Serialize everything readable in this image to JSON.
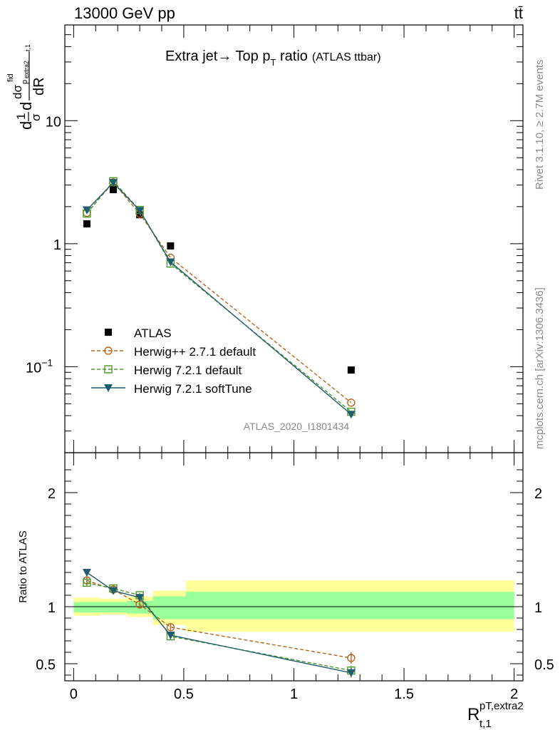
{
  "header": {
    "left": "13000 GeV pp",
    "right": "tt̄"
  },
  "side_labels": {
    "rivet": "Rivet 3.1.10, ≥ 2.7M events",
    "mcplots": "mcplots.cern.ch [arXiv:1306.3436]"
  },
  "title": {
    "main": "Extra jet→ Top p",
    "sub": "T",
    "tail": " ratio",
    "small": "(ATLAS ttbar)"
  },
  "watermark": "ATLAS_2020_I1801434",
  "ylabel_main": {
    "d": "d",
    "one": "1",
    "sigma": "σ",
    "dsig": "dσ",
    "fid": "fid",
    "sub": "p",
    "sub2": "extra2",
    "sub3": "t,1",
    "dR": "dR"
  },
  "ylabel_ratio": "Ratio to ATLAS",
  "xlabel": {
    "main": "R",
    "sup": "pT,extra2",
    "sub": "t,1"
  },
  "chart_data": [
    {
      "type": "line",
      "panel": "main",
      "yscale": "log",
      "xlim": [
        -0.04,
        2.04
      ],
      "ylim": [
        0.02,
        60
      ],
      "y_tick_labels": [
        {
          "value": 0.1,
          "base": "10",
          "exp": "−1"
        },
        {
          "value": 1,
          "base": "1",
          "exp": ""
        },
        {
          "value": 10,
          "base": "10",
          "exp": ""
        }
      ],
      "legend_position": "bottom-left",
      "series": [
        {
          "name": "ATLAS",
          "style": "data",
          "color": "#000000",
          "x": [
            0.06,
            0.18,
            0.3,
            0.44,
            1.26
          ],
          "y": [
            1.45,
            2.75,
            1.72,
            0.96,
            0.094
          ]
        },
        {
          "name": "Herwig++ 2.7.1 default",
          "style": "circle-dashed",
          "color": "#b5651d",
          "x": [
            0.06,
            0.18,
            0.3,
            0.44,
            1.26
          ],
          "y": [
            1.78,
            3.15,
            1.75,
            0.77,
            0.051
          ]
        },
        {
          "name": "Herwig 7.2.1 default",
          "style": "square-dashed",
          "color": "#4a9a2a",
          "x": [
            0.06,
            0.18,
            0.3,
            0.44,
            1.26
          ],
          "y": [
            1.76,
            3.22,
            1.88,
            0.69,
            0.043
          ]
        },
        {
          "name": "Herwig 7.2.1 softTune",
          "style": "triangle-solid",
          "color": "#1f5c6e",
          "x": [
            0.06,
            0.18,
            0.3,
            0.44,
            1.26
          ],
          "y": [
            1.88,
            3.14,
            1.86,
            0.71,
            0.041
          ]
        }
      ]
    },
    {
      "type": "line",
      "panel": "ratio",
      "xlim": [
        -0.04,
        2.04
      ],
      "ylim": [
        0.35,
        2.35
      ],
      "x_tick_labels": [
        "0",
        "0.5",
        "1",
        "1.5",
        "2"
      ],
      "x_ticks": [
        0,
        0.5,
        1,
        1.5,
        2
      ],
      "y_tick_labels": [
        "0.5",
        "1",
        "2"
      ],
      "y_ticks": [
        0.5,
        1,
        2
      ],
      "bands": [
        {
          "x0": 0.0,
          "x1": 0.12,
          "inner": [
            0.95,
            1.04
          ],
          "outer": [
            0.92,
            1.08
          ]
        },
        {
          "x0": 0.12,
          "x1": 0.24,
          "inner": [
            0.95,
            1.04
          ],
          "outer": [
            0.93,
            1.07
          ]
        },
        {
          "x0": 0.24,
          "x1": 0.36,
          "inner": [
            0.94,
            1.05
          ],
          "outer": [
            0.91,
            1.09
          ]
        },
        {
          "x0": 0.36,
          "x1": 0.51,
          "inner": [
            0.89,
            1.09
          ],
          "outer": [
            0.84,
            1.14
          ]
        },
        {
          "x0": 0.51,
          "x1": 2.0,
          "inner": [
            0.89,
            1.13
          ],
          "outer": [
            0.78,
            1.23
          ]
        }
      ],
      "series": [
        {
          "name": "Herwig++ 2.7.1 default",
          "style": "circle-dashed",
          "color": "#b5651d",
          "x": [
            0.06,
            0.18,
            0.3,
            0.44,
            1.26
          ],
          "y": [
            1.23,
            1.15,
            1.02,
            0.82,
            0.55
          ],
          "err": [
            0.03,
            0.02,
            0.03,
            0.03,
            0.05
          ]
        },
        {
          "name": "Herwig 7.2.1 default",
          "style": "square-dashed",
          "color": "#4a9a2a",
          "x": [
            0.06,
            0.18,
            0.3,
            0.44,
            1.26
          ],
          "y": [
            1.21,
            1.16,
            1.1,
            0.74,
            0.44
          ],
          "err": [
            0.03,
            0.02,
            0.02,
            0.03,
            0.04
          ]
        },
        {
          "name": "Herwig 7.2.1 softTune",
          "style": "triangle-solid",
          "color": "#1f5c6e",
          "x": [
            0.06,
            0.18,
            0.3,
            0.44,
            1.26
          ],
          "y": [
            1.3,
            1.14,
            1.08,
            0.75,
            0.42
          ],
          "err": [
            0.03,
            0.02,
            0.02,
            0.03,
            0.04
          ]
        }
      ]
    }
  ]
}
